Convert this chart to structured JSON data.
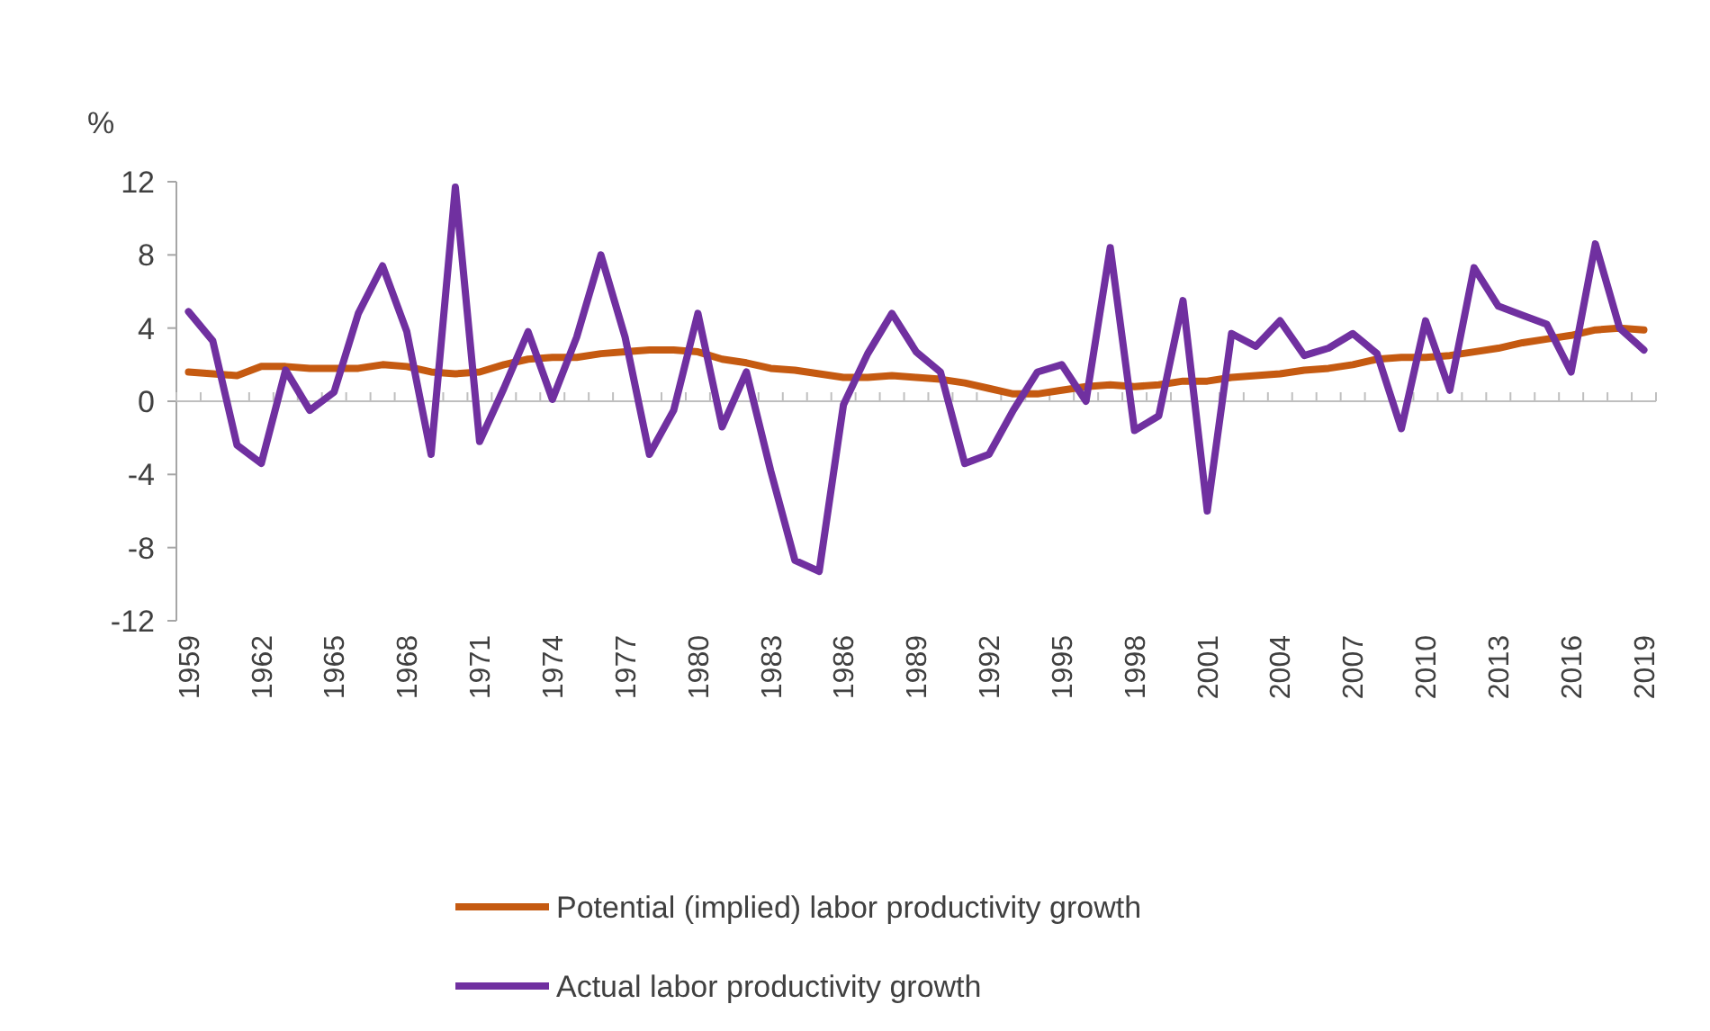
{
  "chart_data": {
    "type": "line",
    "ylabel": "%",
    "categories": [
      "1959",
      null,
      null,
      "1962",
      null,
      null,
      "1965",
      null,
      null,
      "1968",
      null,
      null,
      "1971",
      null,
      null,
      "1974",
      null,
      null,
      "1977",
      null,
      null,
      "1980",
      null,
      null,
      "1983",
      null,
      null,
      "1986",
      null,
      null,
      "1989",
      null,
      null,
      "1992",
      null,
      null,
      "1995",
      null,
      null,
      "1998",
      null,
      null,
      "2001",
      null,
      null,
      "2004",
      null,
      null,
      "2007",
      null,
      null,
      "2010",
      null,
      null,
      "2013",
      null,
      null,
      "2016",
      null,
      null,
      "2019"
    ],
    "series": [
      {
        "name": "Potential (implied) labor productivity growth",
        "color": "#c55a11",
        "values": [
          1.6,
          1.5,
          1.4,
          1.9,
          1.9,
          1.8,
          1.8,
          1.8,
          2.0,
          1.9,
          1.6,
          1.5,
          1.6,
          2.0,
          2.3,
          2.4,
          2.4,
          2.6,
          2.7,
          2.8,
          2.8,
          2.7,
          2.3,
          2.1,
          1.8,
          1.7,
          1.5,
          1.3,
          1.3,
          1.4,
          1.3,
          1.2,
          1.0,
          0.7,
          0.4,
          0.4,
          0.6,
          0.8,
          0.9,
          0.8,
          0.9,
          1.1,
          1.1,
          1.3,
          1.4,
          1.5,
          1.7,
          1.8,
          2.0,
          2.3,
          2.4,
          2.4,
          2.5,
          2.7,
          2.9,
          3.2,
          3.4,
          3.6,
          3.9,
          4.0,
          3.9
        ]
      },
      {
        "name": "Actual labor productivity growth",
        "color": "#7030a0",
        "values": [
          4.9,
          3.3,
          -2.4,
          -3.4,
          1.7,
          -0.5,
          0.5,
          4.8,
          7.4,
          3.8,
          -2.9,
          11.7,
          -2.2,
          0.7,
          3.8,
          0.1,
          3.5,
          8.0,
          3.5,
          -2.9,
          -0.5,
          4.8,
          -1.4,
          1.6,
          -3.8,
          -8.7,
          -9.3,
          -0.2,
          2.6,
          4.8,
          2.7,
          1.6,
          -3.4,
          -2.9,
          -0.5,
          1.6,
          2.0,
          0.0,
          8.4,
          -1.6,
          -0.8,
          5.5,
          -6.0,
          3.7,
          3.0,
          4.4,
          2.5,
          2.9,
          3.7,
          2.6,
          -1.5,
          4.4,
          0.6,
          7.3,
          5.2,
          4.7,
          4.2,
          1.6,
          8.6,
          4.0,
          2.8
        ]
      }
    ],
    "ylim": [
      -12,
      12
    ],
    "yticks": [
      -12,
      -8,
      -4,
      0,
      4,
      8,
      12
    ],
    "legend": "bottom",
    "line_style": "solid",
    "marker": "none"
  }
}
